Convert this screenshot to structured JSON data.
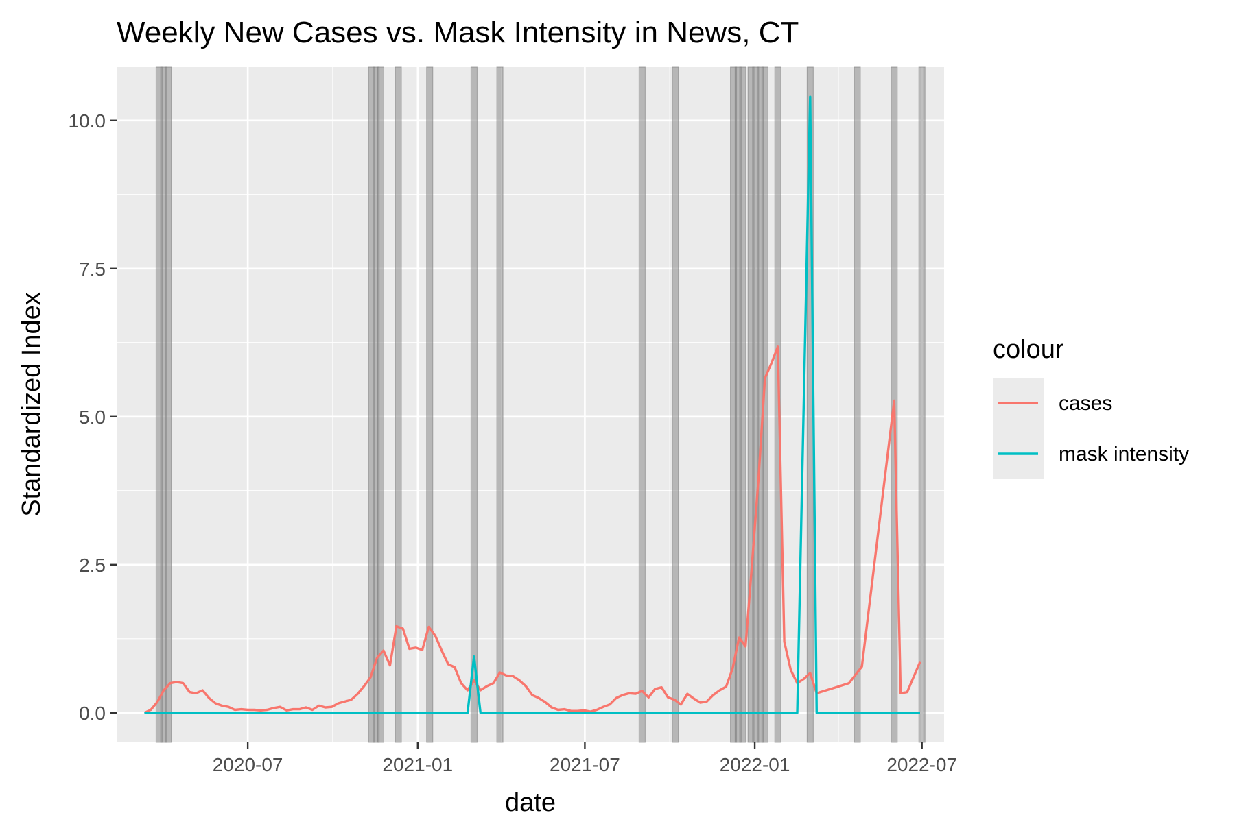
{
  "chart_data": {
    "type": "line",
    "title": "Weekly New Cases vs. Mask Intensity in News, CT",
    "xlabel": "date",
    "ylabel": "Standardized Index",
    "x_type": "date",
    "xlim": [
      "2020-02-10",
      "2022-07-25"
    ],
    "ylim": [
      -0.5,
      10.9
    ],
    "x_ticks": [
      {
        "date": "2020-07-01",
        "label": "2020-07"
      },
      {
        "date": "2021-01-01",
        "label": "2021-01"
      },
      {
        "date": "2021-07-01",
        "label": "2021-07"
      },
      {
        "date": "2022-01-01",
        "label": "2022-01"
      },
      {
        "date": "2022-07-01",
        "label": "2022-07"
      }
    ],
    "y_ticks": [
      {
        "value": 0,
        "label": "0.0"
      },
      {
        "value": 2.5,
        "label": "2.5"
      },
      {
        "value": 5,
        "label": "5.0"
      },
      {
        "value": 7.5,
        "label": "7.5"
      },
      {
        "value": 10,
        "label": "10.0"
      }
    ],
    "grid": true,
    "legend": {
      "title": "colour",
      "position": "right"
    },
    "series": [
      {
        "name": "cases",
        "color": "#F8766D",
        "points": [
          [
            "2020-03-11",
            0.0
          ],
          [
            "2020-03-18",
            0.05
          ],
          [
            "2020-03-25",
            0.18
          ],
          [
            "2020-04-01",
            0.38
          ],
          [
            "2020-04-08",
            0.5
          ],
          [
            "2020-04-15",
            0.52
          ],
          [
            "2020-04-22",
            0.5
          ],
          [
            "2020-04-29",
            0.35
          ],
          [
            "2020-05-06",
            0.33
          ],
          [
            "2020-05-13",
            0.38
          ],
          [
            "2020-05-20",
            0.25
          ],
          [
            "2020-05-27",
            0.16
          ],
          [
            "2020-06-03",
            0.12
          ],
          [
            "2020-06-10",
            0.1
          ],
          [
            "2020-06-17",
            0.05
          ],
          [
            "2020-06-24",
            0.06
          ],
          [
            "2020-07-01",
            0.05
          ],
          [
            "2020-07-08",
            0.05
          ],
          [
            "2020-07-15",
            0.04
          ],
          [
            "2020-07-22",
            0.05
          ],
          [
            "2020-07-29",
            0.08
          ],
          [
            "2020-08-05",
            0.1
          ],
          [
            "2020-08-12",
            0.04
          ],
          [
            "2020-08-19",
            0.06
          ],
          [
            "2020-08-26",
            0.06
          ],
          [
            "2020-09-02",
            0.09
          ],
          [
            "2020-09-09",
            0.05
          ],
          [
            "2020-09-16",
            0.12
          ],
          [
            "2020-09-23",
            0.09
          ],
          [
            "2020-09-30",
            0.1
          ],
          [
            "2020-10-07",
            0.16
          ],
          [
            "2020-10-14",
            0.19
          ],
          [
            "2020-10-21",
            0.22
          ],
          [
            "2020-10-28",
            0.32
          ],
          [
            "2020-11-04",
            0.45
          ],
          [
            "2020-11-11",
            0.6
          ],
          [
            "2020-11-18",
            0.93
          ],
          [
            "2020-11-25",
            1.05
          ],
          [
            "2020-12-02",
            0.8
          ],
          [
            "2020-12-09",
            1.46
          ],
          [
            "2020-12-16",
            1.42
          ],
          [
            "2020-12-23",
            1.08
          ],
          [
            "2020-12-30",
            1.1
          ],
          [
            "2021-01-06",
            1.06
          ],
          [
            "2021-01-13",
            1.45
          ],
          [
            "2021-01-20",
            1.3
          ],
          [
            "2021-01-27",
            1.05
          ],
          [
            "2021-02-03",
            0.82
          ],
          [
            "2021-02-10",
            0.77
          ],
          [
            "2021-02-17",
            0.5
          ],
          [
            "2021-02-24",
            0.38
          ],
          [
            "2021-03-03",
            0.55
          ],
          [
            "2021-03-10",
            0.38
          ],
          [
            "2021-03-17",
            0.45
          ],
          [
            "2021-03-24",
            0.5
          ],
          [
            "2021-03-31",
            0.68
          ],
          [
            "2021-04-07",
            0.63
          ],
          [
            "2021-04-14",
            0.62
          ],
          [
            "2021-04-21",
            0.55
          ],
          [
            "2021-04-28",
            0.45
          ],
          [
            "2021-05-05",
            0.3
          ],
          [
            "2021-05-12",
            0.25
          ],
          [
            "2021-05-19",
            0.18
          ],
          [
            "2021-05-26",
            0.09
          ],
          [
            "2021-06-02",
            0.05
          ],
          [
            "2021-06-09",
            0.06
          ],
          [
            "2021-06-16",
            0.03
          ],
          [
            "2021-06-23",
            0.03
          ],
          [
            "2021-06-30",
            0.04
          ],
          [
            "2021-07-07",
            0.02
          ],
          [
            "2021-07-14",
            0.05
          ],
          [
            "2021-07-21",
            0.1
          ],
          [
            "2021-07-28",
            0.14
          ],
          [
            "2021-08-04",
            0.25
          ],
          [
            "2021-08-11",
            0.3
          ],
          [
            "2021-08-18",
            0.33
          ],
          [
            "2021-08-25",
            0.32
          ],
          [
            "2021-09-01",
            0.37
          ],
          [
            "2021-09-08",
            0.26
          ],
          [
            "2021-09-15",
            0.4
          ],
          [
            "2021-09-22",
            0.43
          ],
          [
            "2021-09-29",
            0.26
          ],
          [
            "2021-10-06",
            0.22
          ],
          [
            "2021-10-13",
            0.14
          ],
          [
            "2021-10-20",
            0.32
          ],
          [
            "2021-10-27",
            0.24
          ],
          [
            "2021-11-03",
            0.17
          ],
          [
            "2021-11-10",
            0.19
          ],
          [
            "2021-11-17",
            0.3
          ],
          [
            "2021-11-24",
            0.38
          ],
          [
            "2021-12-01",
            0.44
          ],
          [
            "2021-12-08",
            0.75
          ],
          [
            "2021-12-15",
            1.27
          ],
          [
            "2021-12-22",
            1.12
          ],
          [
            "2021-12-29",
            2.5
          ],
          [
            "2022-01-05",
            3.95
          ],
          [
            "2022-01-12",
            5.65
          ],
          [
            "2022-01-19",
            5.9
          ],
          [
            "2022-01-26",
            6.18
          ],
          [
            "2022-02-02",
            1.2
          ],
          [
            "2022-02-09",
            0.72
          ],
          [
            "2022-02-16",
            0.5
          ],
          [
            "2022-02-23",
            0.57
          ],
          [
            "2022-03-02",
            0.67
          ],
          [
            "2022-03-09",
            0.33
          ],
          [
            "2022-03-30",
            0.43
          ],
          [
            "2022-04-13",
            0.5
          ],
          [
            "2022-04-27",
            0.78
          ],
          [
            "2022-06-01",
            5.27
          ],
          [
            "2022-06-08",
            0.33
          ],
          [
            "2022-06-15",
            0.35
          ],
          [
            "2022-06-29",
            0.86
          ]
        ]
      },
      {
        "name": "mask intensity",
        "color": "#00BFC4",
        "points": [
          [
            "2020-03-11",
            0.0
          ],
          [
            "2021-02-24",
            0.0
          ],
          [
            "2021-03-03",
            0.95
          ],
          [
            "2021-03-10",
            0.0
          ],
          [
            "2022-02-16",
            0.0
          ],
          [
            "2022-03-02",
            10.4
          ],
          [
            "2022-03-09",
            0.0
          ],
          [
            "2022-06-29",
            0.0
          ]
        ]
      }
    ],
    "event_bars": [
      "2020-03-27",
      "2020-04-01",
      "2020-04-06",
      "2020-11-12",
      "2020-11-17",
      "2020-11-22",
      "2020-12-11",
      "2021-01-14",
      "2021-03-03",
      "2021-03-31",
      "2021-09-01",
      "2021-10-07",
      "2021-12-09",
      "2021-12-14",
      "2021-12-19",
      "2021-12-28",
      "2022-01-02",
      "2022-01-07",
      "2022-01-12",
      "2022-01-26",
      "2022-03-02",
      "2022-04-22",
      "2022-06-01",
      "2022-07-01"
    ]
  }
}
